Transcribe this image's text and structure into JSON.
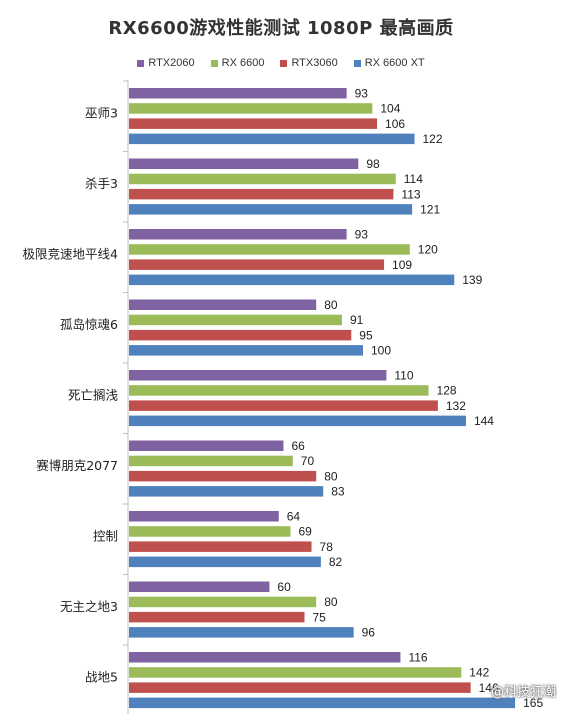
{
  "chart_data": {
    "type": "bar",
    "orientation": "horizontal",
    "title": "RX6600游戏性能测试  1080P  最高画质",
    "categories": [
      "巫师3",
      "杀手3",
      "极限竞速地平线4",
      "孤岛惊魂6",
      "死亡搁浅",
      "赛博朋克2077",
      "控制",
      "无主之地3",
      "战地5"
    ],
    "series": [
      {
        "name": "RTX2060",
        "color": "#7f62a1",
        "values": [
          93,
          98,
          93,
          80,
          110,
          66,
          64,
          60,
          116
        ]
      },
      {
        "name": "RX 6600",
        "color": "#9bbb59",
        "values": [
          104,
          114,
          120,
          91,
          128,
          70,
          69,
          80,
          142
        ]
      },
      {
        "name": "RTX3060",
        "color": "#c0504d",
        "values": [
          106,
          113,
          109,
          95,
          132,
          80,
          78,
          75,
          146
        ]
      },
      {
        "name": "RX 6600 XT",
        "color": "#4f81bd",
        "values": [
          122,
          121,
          139,
          100,
          144,
          83,
          82,
          96,
          165
        ]
      }
    ],
    "legend_position": "top",
    "xlim": [
      0,
      180
    ],
    "grid": false
  },
  "watermark": "@科技狂潮"
}
